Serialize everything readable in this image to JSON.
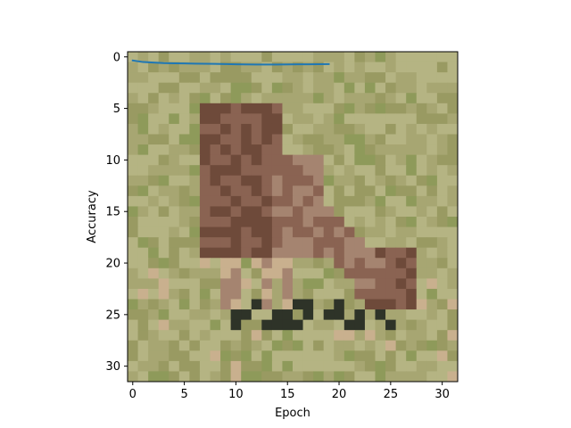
{
  "chart_data": {
    "type": "line",
    "title": "",
    "xlabel": "Epoch",
    "ylabel": "Accuracy",
    "xlim": [
      -0.5,
      31.5
    ],
    "ylim": [
      31.5,
      -0.5
    ],
    "y_axis_inverted": true,
    "grid": false,
    "background": "pixelated low-resolution photo (32×32) of an animal standing on grass, drawn as an image behind the plot",
    "xticks": [
      0,
      5,
      10,
      15,
      20,
      25,
      30
    ],
    "yticks": [
      0,
      5,
      10,
      15,
      20,
      25,
      30
    ],
    "series": [
      {
        "color": "#1f77b4",
        "x": [
          0,
          1,
          2,
          3,
          4,
          5,
          6,
          7,
          8,
          9,
          10,
          11,
          12,
          13,
          14,
          15,
          16,
          17,
          18,
          19
        ],
        "y": [
          0.35,
          0.5,
          0.55,
          0.6,
          0.62,
          0.64,
          0.66,
          0.67,
          0.68,
          0.7,
          0.72,
          0.73,
          0.74,
          0.74,
          0.74,
          0.73,
          0.72,
          0.72,
          0.71,
          0.7
        ]
      }
    ]
  },
  "image_palette": {
    "grass_light": "#b5b483",
    "grass_mid": "#a7a672",
    "grass_dark": "#999a62",
    "grass_green": "#8e9a5a",
    "animal_dark": "#6e4a3a",
    "animal_mid": "#8a6352",
    "animal_light": "#a58470",
    "shadow": "#2e3328",
    "sand": "#c9b08e"
  }
}
